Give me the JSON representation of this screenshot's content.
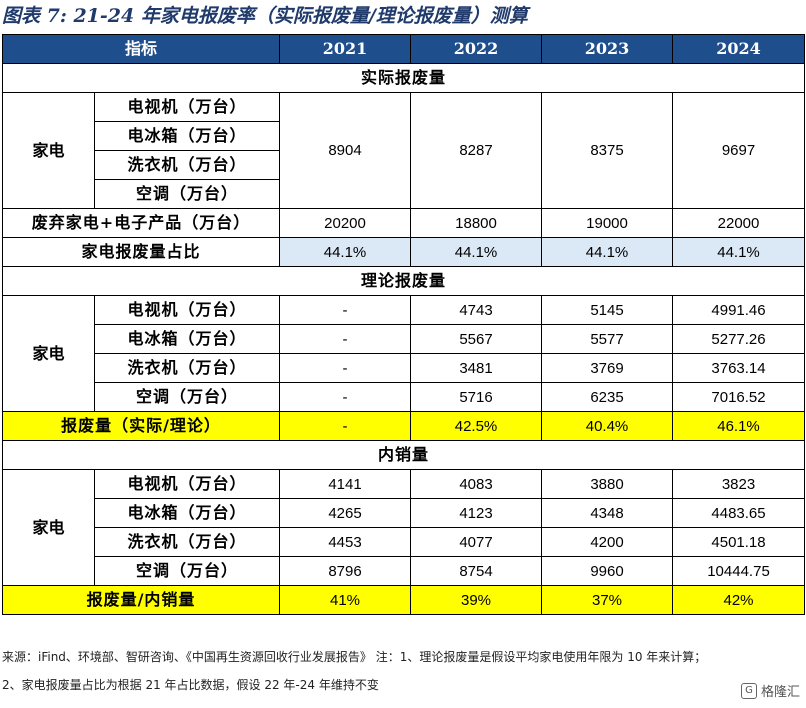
{
  "title": "图表 7: 21-24 年家电报废率（实际报废量/理论报废量）测算",
  "header": {
    "indicator": "指标",
    "years": [
      "2021",
      "2022",
      "2023",
      "2024"
    ]
  },
  "sections": {
    "actual": "实际报废量",
    "theory": "理论报废量",
    "domestic": "内销量"
  },
  "category": "家电",
  "items": [
    "电视机（万台）",
    "电冰箱（万台）",
    "洗衣机（万台）",
    "空调（万台）"
  ],
  "actual": {
    "appliance_values": [
      "8904",
      "8287",
      "8375",
      "9697"
    ],
    "waste_label": "废弃家电+电子产品（万台）",
    "waste_values": [
      "20200",
      "18800",
      "19000",
      "22000"
    ],
    "share_label": "家电报废量占比",
    "share_values": [
      "44.1%",
      "44.1%",
      "44.1%",
      "44.1%"
    ]
  },
  "theory": {
    "rows": [
      [
        "-",
        "4743",
        "5145",
        "4991.46"
      ],
      [
        "-",
        "5567",
        "5577",
        "5277.26"
      ],
      [
        "-",
        "3481",
        "3769",
        "3763.14"
      ],
      [
        "-",
        "5716",
        "6235",
        "7016.52"
      ]
    ],
    "ratio_label": "报废量（实际/理论）",
    "ratio_values": [
      "-",
      "42.5%",
      "40.4%",
      "46.1%"
    ]
  },
  "domestic": {
    "rows": [
      [
        "4141",
        "4083",
        "3880",
        "3823"
      ],
      [
        "4265",
        "4123",
        "4348",
        "4483.65"
      ],
      [
        "4453",
        "4077",
        "4200",
        "4501.18"
      ],
      [
        "8796",
        "8754",
        "9960",
        "10444.75"
      ]
    ],
    "ratio_label": "报废量/内销量",
    "ratio_values": [
      "41%",
      "39%",
      "37%",
      "42%"
    ]
  },
  "source_line1": "来源：iFind、环境部、智研咨询、《中国再生资源回收行业发展报告》 注：1、理论报废量是假设平均家电使用年限为 10 年来计算；",
  "source_line2": "2、家电报废量占比为根据 21 年占比数据，假设 22 年-24 年维持不变",
  "watermark": "格隆汇",
  "colors": {
    "header_bg": "#1f4e8c",
    "highlight_yellow": "#ffff00",
    "highlight_blue": "#dbe8f5",
    "title": "#1f3a6b"
  }
}
